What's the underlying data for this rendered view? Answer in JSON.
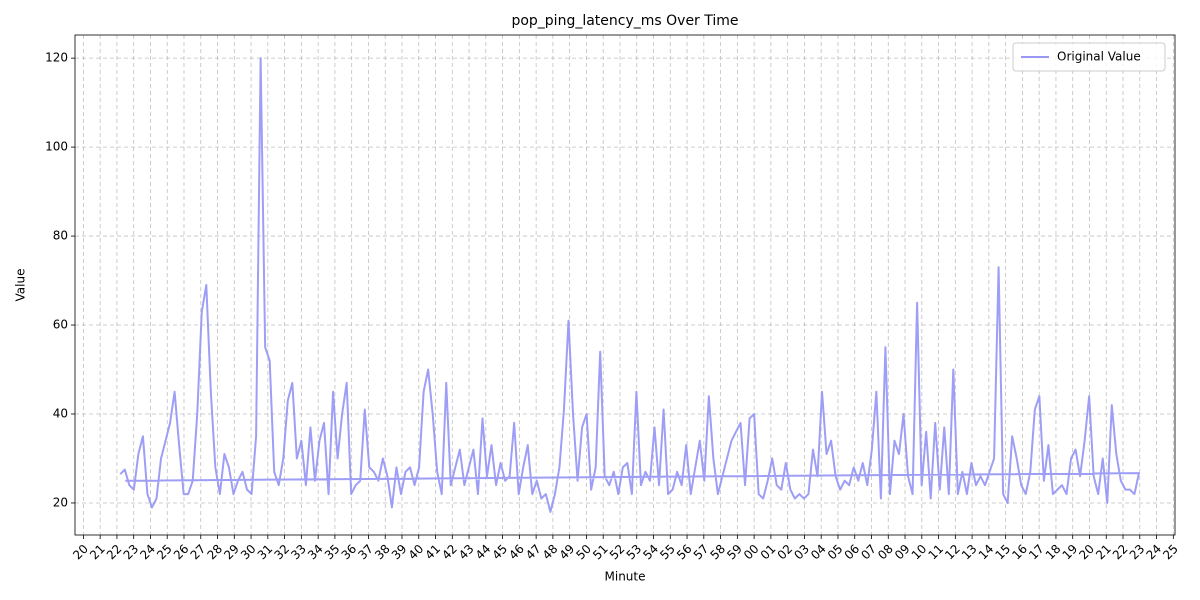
{
  "chart_data": {
    "type": "line",
    "title": "pop_ping_latency_ms Over Time",
    "x_label": "Minute",
    "y_label": "Value",
    "x": [
      22.2,
      22.47,
      22.74,
      23.01,
      23.28,
      23.55,
      23.82,
      24.09,
      24.36,
      24.63,
      24.9,
      25.17,
      25.44,
      25.71,
      25.98,
      26.25,
      26.52,
      26.79,
      27.06,
      27.33,
      27.6,
      27.87,
      28.14,
      28.41,
      28.68,
      28.95,
      29.22,
      29.49,
      29.76,
      30.03,
      30.3,
      30.57,
      30.84,
      31.11,
      31.38,
      31.65,
      31.92,
      32.19,
      32.46,
      32.73,
      33,
      33.27,
      33.54,
      33.81,
      34.08,
      34.35,
      34.62,
      34.89,
      35.16,
      35.43,
      35.7,
      35.97,
      36.24,
      36.51,
      36.78,
      37.05,
      37.32,
      37.59,
      37.86,
      38.13,
      38.4,
      38.67,
      38.94,
      39.21,
      39.48,
      39.75,
      40.02,
      40.29,
      40.56,
      40.83,
      41.1,
      41.37,
      41.64,
      41.91,
      42.18,
      42.45,
      42.72,
      42.99,
      43.26,
      43.53,
      43.8,
      44.07,
      44.34,
      44.61,
      44.88,
      45.15,
      45.42,
      45.69,
      45.96,
      46.23,
      46.5,
      46.77,
      47.04,
      47.31,
      47.58,
      47.85,
      48.12,
      48.39,
      48.66,
      48.93,
      49.2,
      49.47,
      49.74,
      50.01,
      50.28,
      50.55,
      50.82,
      51.09,
      51.36,
      51.63,
      51.9,
      52.17,
      52.44,
      52.71,
      52.98,
      53.25,
      53.52,
      53.79,
      54.06,
      54.33,
      54.6,
      54.87,
      55.14,
      55.41,
      55.68,
      55.95,
      56.22,
      56.49,
      56.76,
      57.03,
      57.3,
      57.57,
      57.84,
      58.11,
      58.38,
      58.65,
      58.92,
      59.19,
      59.46,
      59.73,
      60,
      60.27,
      60.54,
      60.81,
      61.08,
      61.35,
      61.62,
      61.89,
      62.16,
      62.43,
      62.7,
      62.97,
      63.24,
      63.51,
      63.78,
      64.05,
      64.32,
      64.59,
      64.86,
      65.13,
      65.4,
      65.67,
      65.94,
      66.21,
      66.48,
      66.75,
      67.02,
      67.29,
      67.56,
      67.83,
      68.1,
      68.37,
      68.64,
      68.91,
      69.18,
      69.45,
      69.72,
      69.99,
      70.26,
      70.53,
      70.8,
      71.07,
      71.34,
      71.61,
      71.88,
      72.15,
      72.42,
      72.69,
      72.96,
      73.23,
      73.5,
      73.77,
      74.04,
      74.31,
      74.58,
      74.85,
      75.12,
      75.39,
      75.66,
      75.93,
      76.2,
      76.47,
      76.74,
      77.01,
      77.28,
      77.55,
      77.82,
      78.09,
      78.36,
      78.63,
      78.9,
      79.17,
      79.44,
      79.71,
      79.98,
      80.25,
      80.52,
      80.79,
      81.06,
      81.33,
      81.6,
      81.87,
      82.14,
      82.41,
      82.68,
      82.95,
      22.5
    ],
    "series": [
      {
        "name": "Original Value",
        "color": "#9999f5",
        "values": [
          26.5,
          27.5,
          24,
          23,
          31,
          35,
          22,
          19,
          21,
          30,
          34,
          38,
          45,
          33,
          22,
          22,
          25,
          40,
          63,
          69,
          45,
          28,
          22,
          31,
          28,
          22,
          25,
          27,
          23,
          22,
          35,
          120,
          55,
          52,
          27,
          24,
          30,
          43,
          47,
          30,
          34,
          24,
          37,
          25,
          34,
          38,
          22,
          45,
          30,
          40,
          47,
          22,
          24,
          25,
          41,
          28,
          27,
          25,
          30,
          26,
          19,
          28,
          22,
          27,
          28,
          24,
          28,
          45,
          50,
          40,
          27,
          22,
          47,
          24,
          28,
          32,
          24,
          28,
          32,
          22,
          39,
          26,
          33,
          24,
          29,
          25,
          26,
          38,
          22,
          28,
          33,
          22,
          25,
          21,
          22,
          18,
          22,
          28,
          41,
          61,
          40,
          25,
          37,
          40,
          23,
          28,
          54,
          26,
          24,
          27,
          22,
          28,
          29,
          22,
          45,
          24,
          27,
          25,
          37,
          24,
          41,
          22,
          23,
          27,
          24,
          33,
          22,
          28,
          34,
          25,
          44,
          30,
          22,
          26,
          30,
          34,
          36,
          38,
          24,
          39,
          40,
          22,
          21,
          25,
          30,
          24,
          23,
          29,
          23,
          21,
          22,
          21,
          22,
          32,
          26,
          45,
          31,
          34,
          26,
          23,
          25,
          24,
          28,
          25,
          29,
          24,
          32,
          45,
          21,
          55,
          22,
          34,
          31,
          40,
          26,
          22,
          65,
          24,
          36,
          21,
          38,
          23,
          37,
          22,
          50,
          22,
          27,
          22,
          29,
          24,
          26,
          24,
          27,
          30,
          73,
          22,
          20,
          35,
          30,
          24,
          22,
          27,
          41,
          44,
          25,
          33,
          22,
          23,
          24,
          22,
          30,
          32,
          26,
          34,
          44,
          26,
          22,
          30,
          20,
          42,
          31,
          25,
          23,
          23,
          22,
          26.7,
          25
        ]
      }
    ],
    "xlim": [
      19.5,
      85.1
    ],
    "xticks": [
      20,
      21,
      22,
      23,
      24,
      25,
      26,
      27,
      28,
      29,
      30,
      31,
      32,
      33,
      34,
      35,
      36,
      37,
      38,
      39,
      40,
      41,
      42,
      43,
      44,
      45,
      46,
      47,
      48,
      49,
      50,
      51,
      52,
      53,
      54,
      55,
      56,
      57,
      58,
      59,
      {
        "value": 60,
        "label": "00"
      },
      {
        "value": 61,
        "label": "01"
      },
      {
        "value": 62,
        "label": "02"
      },
      {
        "value": 63,
        "label": "03"
      },
      {
        "value": 64,
        "label": "04"
      },
      {
        "value": 65,
        "label": "05"
      },
      {
        "value": 66,
        "label": "06"
      },
      {
        "value": 67,
        "label": "07"
      },
      {
        "value": 68,
        "label": "08"
      },
      {
        "value": 69,
        "label": "09"
      },
      {
        "value": 70,
        "label": "10"
      },
      {
        "value": 71,
        "label": "11"
      },
      {
        "value": 72,
        "label": "12"
      },
      {
        "value": 73,
        "label": "13"
      },
      {
        "value": 74,
        "label": "14"
      },
      {
        "value": 75,
        "label": "15"
      },
      {
        "value": 76,
        "label": "16"
      },
      {
        "value": 77,
        "label": "17"
      },
      {
        "value": 78,
        "label": "18"
      },
      {
        "value": 79,
        "label": "19"
      },
      {
        "value": 80,
        "label": "20"
      },
      {
        "value": 81,
        "label": "21"
      },
      {
        "value": 82,
        "label": "22"
      },
      {
        "value": 83,
        "label": "23"
      },
      {
        "value": 84,
        "label": "24"
      },
      {
        "value": 85,
        "label": "25"
      }
    ],
    "ylim": [
      12.8,
      125.2
    ],
    "yticks": [
      20,
      40,
      60,
      80,
      100,
      120
    ],
    "grid": true,
    "legend": "upper right"
  }
}
